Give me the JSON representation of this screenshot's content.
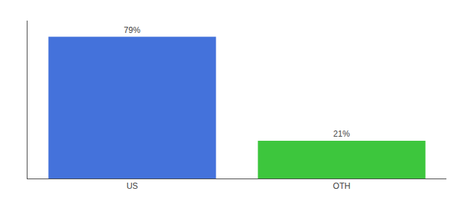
{
  "chart_data": {
    "type": "bar",
    "categories": [
      "US",
      "OTH"
    ],
    "values": [
      79,
      21
    ],
    "value_labels": [
      "79%",
      "21%"
    ],
    "colors": [
      "#4472db",
      "#3dc63d"
    ],
    "ylim": [
      0,
      88
    ],
    "data_labels": true,
    "tick_labels": "x",
    "grid": false
  }
}
